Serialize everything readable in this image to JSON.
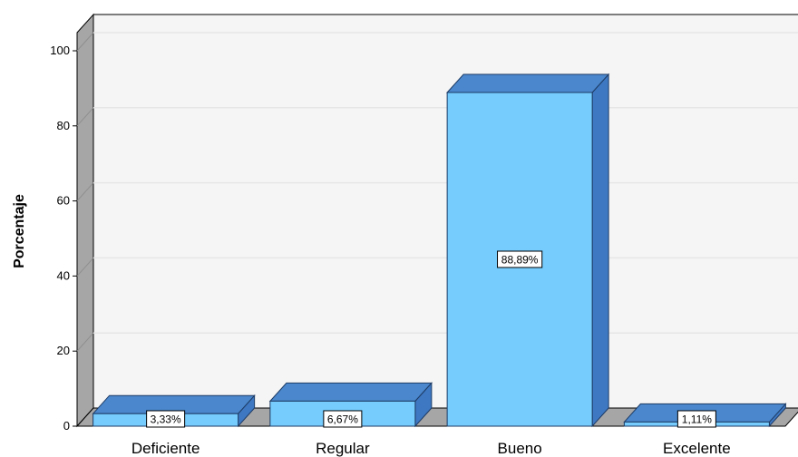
{
  "chart_data": {
    "type": "bar",
    "categories": [
      "Deficiente",
      "Regular",
      "Bueno",
      "Excelente"
    ],
    "values": [
      3.33,
      6.67,
      88.89,
      1.11
    ],
    "data_labels": [
      "3,33%",
      "6,67%",
      "88,89%",
      "1,11%"
    ],
    "ylabel": "Porcentaje",
    "xlabel": "",
    "ylim": [
      0,
      100
    ],
    "yticks": [
      "0",
      "20",
      "40",
      "60",
      "80",
      "100"
    ],
    "grid": true,
    "style": "3d",
    "colors": {
      "bar_front": "#75ccfd",
      "bar_top": "#4a87cc",
      "bar_side": "#3e78c2",
      "bar_stroke": "#1e3c66",
      "wall": "#f5f5f5",
      "gridline": "#e6e6e6",
      "floor_side": "#a6a6a6"
    }
  }
}
